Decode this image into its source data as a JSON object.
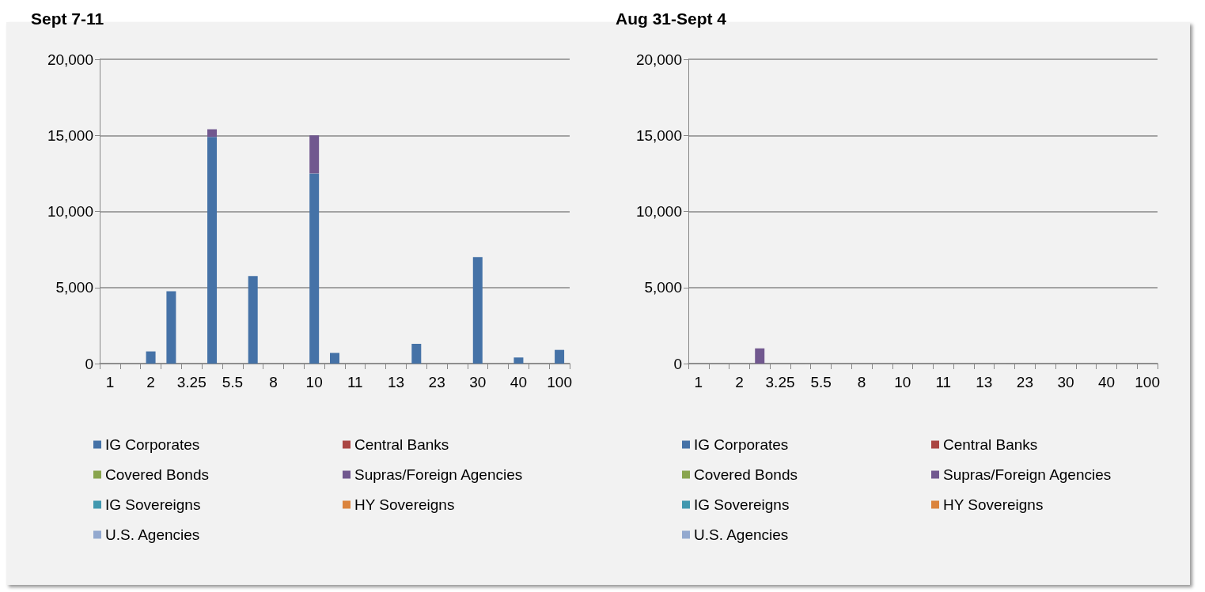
{
  "chart_data": [
    {
      "type": "bar",
      "title": "Sept 7-11",
      "stacked": true,
      "grid": "y",
      "legend": "bottom",
      "ylim": [
        0,
        20000
      ],
      "yticks": [
        0,
        {
          "value": 5000,
          "label": "5,000"
        },
        {
          "value": 10000,
          "label": "10,000"
        },
        {
          "value": 15000,
          "label": "15,000"
        },
        {
          "value": 20000,
          "label": "20,000"
        }
      ],
      "categories": [
        "1",
        null,
        "2",
        null,
        "3.25",
        null,
        "5.5",
        null,
        "8",
        null,
        "10",
        null,
        "11",
        null,
        "13",
        null,
        "23",
        null,
        "30",
        null,
        "40",
        null,
        "100"
      ],
      "series": [
        {
          "name": "IG Corporates",
          "color": "#4572a7",
          "values": [
            null,
            null,
            800,
            4750,
            null,
            14900,
            null,
            5750,
            null,
            null,
            12500,
            700,
            null,
            null,
            null,
            1300,
            null,
            null,
            7000,
            null,
            400,
            null,
            900
          ]
        },
        {
          "name": "Central Banks",
          "color": "#aa4643",
          "values": [
            null,
            null,
            null,
            null,
            null,
            null,
            null,
            null,
            null,
            null,
            null,
            null,
            null,
            null,
            null,
            null,
            null,
            null,
            null,
            null,
            null,
            null,
            null
          ]
        },
        {
          "name": "Covered Bonds",
          "color": "#89a54e",
          "values": [
            null,
            null,
            null,
            null,
            null,
            null,
            null,
            null,
            null,
            null,
            null,
            null,
            null,
            null,
            null,
            null,
            null,
            null,
            null,
            null,
            null,
            null,
            null
          ]
        },
        {
          "name": "Supras/Foreign Agencies",
          "color": "#71588f",
          "values": [
            null,
            null,
            null,
            null,
            null,
            500,
            null,
            null,
            null,
            null,
            2500,
            null,
            null,
            null,
            null,
            null,
            null,
            null,
            null,
            null,
            null,
            null,
            null
          ]
        },
        {
          "name": "IG Sovereigns",
          "color": "#4198af",
          "values": [
            null,
            null,
            null,
            null,
            null,
            null,
            null,
            null,
            null,
            null,
            null,
            null,
            null,
            null,
            null,
            null,
            null,
            null,
            null,
            null,
            null,
            null,
            null
          ]
        },
        {
          "name": "HY Sovereigns",
          "color": "#db843d",
          "values": [
            null,
            null,
            null,
            null,
            null,
            null,
            null,
            null,
            null,
            null,
            null,
            null,
            null,
            null,
            null,
            null,
            null,
            null,
            null,
            null,
            null,
            null,
            null
          ]
        },
        {
          "name": "U.S. Agencies",
          "color": "#93a9cf",
          "values": [
            null,
            null,
            null,
            null,
            null,
            null,
            null,
            null,
            null,
            null,
            null,
            null,
            null,
            null,
            null,
            null,
            null,
            null,
            null,
            null,
            null,
            null,
            null
          ]
        }
      ]
    },
    {
      "type": "bar",
      "title": "Aug 31-Sept 4",
      "stacked": true,
      "grid": "y",
      "legend": "bottom",
      "ylim": [
        0,
        20000
      ],
      "yticks": [
        0,
        {
          "value": 5000,
          "label": "5,000"
        },
        {
          "value": 10000,
          "label": "10,000"
        },
        {
          "value": 15000,
          "label": "15,000"
        },
        {
          "value": 20000,
          "label": "20,000"
        }
      ],
      "categories": [
        "1",
        null,
        "2",
        null,
        "3.25",
        null,
        "5.5",
        null,
        "8",
        null,
        "10",
        null,
        "11",
        null,
        "13",
        null,
        "23",
        null,
        "30",
        null,
        "40",
        null,
        "100"
      ],
      "series": [
        {
          "name": "IG Corporates",
          "color": "#4572a7",
          "values": [
            null,
            null,
            null,
            null,
            null,
            null,
            null,
            null,
            null,
            null,
            null,
            null,
            null,
            null,
            null,
            null,
            null,
            null,
            null,
            null,
            null,
            null,
            null
          ]
        },
        {
          "name": "Central Banks",
          "color": "#aa4643",
          "values": [
            null,
            null,
            null,
            null,
            null,
            null,
            null,
            null,
            null,
            null,
            null,
            null,
            null,
            null,
            null,
            null,
            null,
            null,
            null,
            null,
            null,
            null,
            null
          ]
        },
        {
          "name": "Covered Bonds",
          "color": "#89a54e",
          "values": [
            null,
            null,
            null,
            null,
            null,
            null,
            null,
            null,
            null,
            null,
            null,
            null,
            null,
            null,
            null,
            null,
            null,
            null,
            null,
            null,
            null,
            null,
            null
          ]
        },
        {
          "name": "Supras/Foreign Agencies",
          "color": "#71588f",
          "values": [
            null,
            null,
            null,
            1000,
            null,
            null,
            null,
            null,
            null,
            null,
            null,
            null,
            null,
            null,
            null,
            null,
            null,
            null,
            null,
            null,
            null,
            null,
            null
          ]
        },
        {
          "name": "IG Sovereigns",
          "color": "#4198af",
          "values": [
            null,
            null,
            null,
            null,
            null,
            null,
            null,
            null,
            null,
            null,
            null,
            null,
            null,
            null,
            null,
            null,
            null,
            null,
            null,
            null,
            null,
            null,
            null
          ]
        },
        {
          "name": "HY Sovereigns",
          "color": "#db843d",
          "values": [
            null,
            null,
            null,
            null,
            null,
            null,
            null,
            null,
            null,
            null,
            null,
            null,
            null,
            null,
            null,
            null,
            null,
            null,
            null,
            null,
            null,
            null,
            null
          ]
        },
        {
          "name": "U.S. Agencies",
          "color": "#93a9cf",
          "values": [
            null,
            null,
            null,
            null,
            null,
            null,
            null,
            null,
            null,
            null,
            null,
            null,
            null,
            null,
            null,
            null,
            null,
            null,
            null,
            null,
            null,
            null,
            null
          ]
        }
      ]
    }
  ]
}
